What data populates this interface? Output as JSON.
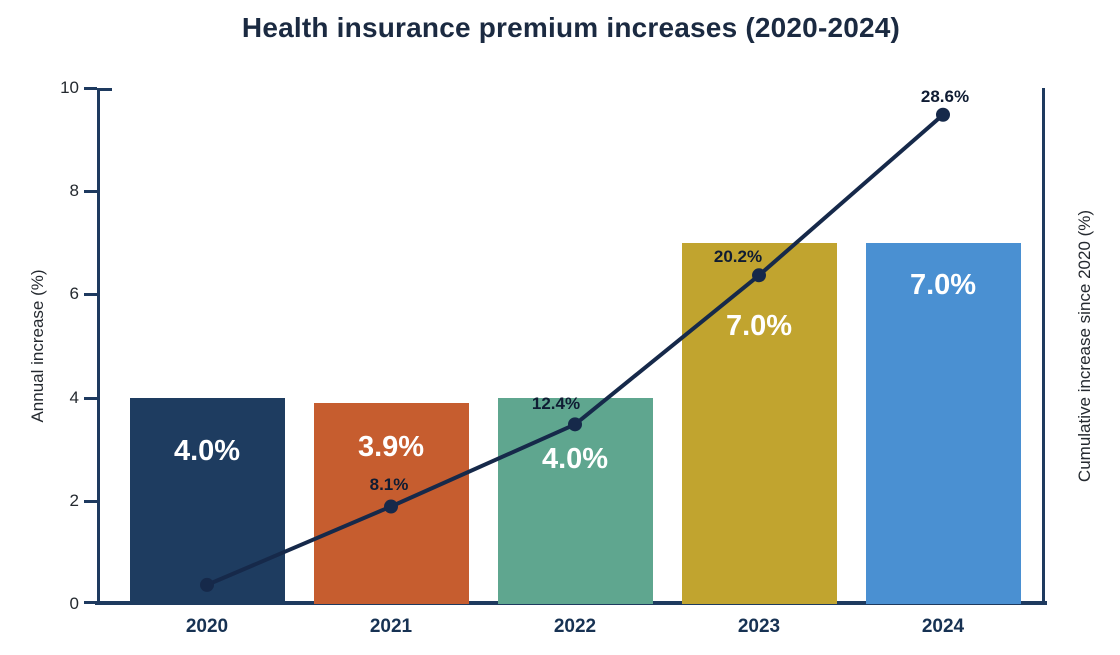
{
  "title": "Health insurance premium increases (2020-2024)",
  "axes": {
    "left_label": "Annual increase (%)",
    "right_label": "Cumulative increase since 2020 (%)",
    "left_ticks": [
      0,
      2,
      4,
      6,
      8,
      10
    ]
  },
  "colors": {
    "axis": "#1e3a5f",
    "title_text": "#1b2a41",
    "year_text": "#173253",
    "tick_text": "#24292f",
    "bar_label_text": "#ffffff",
    "line_label_text": "#0f1c33",
    "background": "#ffffff"
  },
  "chart_data": {
    "type": "bar",
    "subtype": "bar-line-combo",
    "title": "Health insurance premium increases (2020-2024)",
    "categories": [
      "2020",
      "2021",
      "2022",
      "2023",
      "2024"
    ],
    "series": [
      {
        "name": "Annual increase (%)",
        "type": "bar",
        "axis": "left",
        "values": [
          4.0,
          3.9,
          4.0,
          7.0,
          7.0
        ],
        "labels": [
          "4.0%",
          "3.9%",
          "4.0%",
          "7.0%",
          "7.0%"
        ],
        "colors": [
          "#1e3c60",
          "#c65d2f",
          "#5fa68f",
          "#c1a42f",
          "#4a90d2"
        ]
      },
      {
        "name": "Cumulative increase since 2020 (%)",
        "type": "line",
        "axis": "right",
        "values": [
          4.0,
          8.1,
          12.4,
          20.2,
          28.6
        ],
        "labels": [
          "",
          "8.1%",
          "12.4%",
          "20.2%",
          "28.6%"
        ],
        "color": "#16294a"
      }
    ],
    "xlabel": "",
    "ylabel": "Annual increase (%)",
    "y2label": "Cumulative increase since 2020 (%)",
    "ylim": [
      0,
      10
    ],
    "y2lim": [
      3,
      30
    ],
    "yticks": [
      0,
      2,
      4,
      6,
      8,
      10
    ],
    "grid": false,
    "legend": "none"
  }
}
